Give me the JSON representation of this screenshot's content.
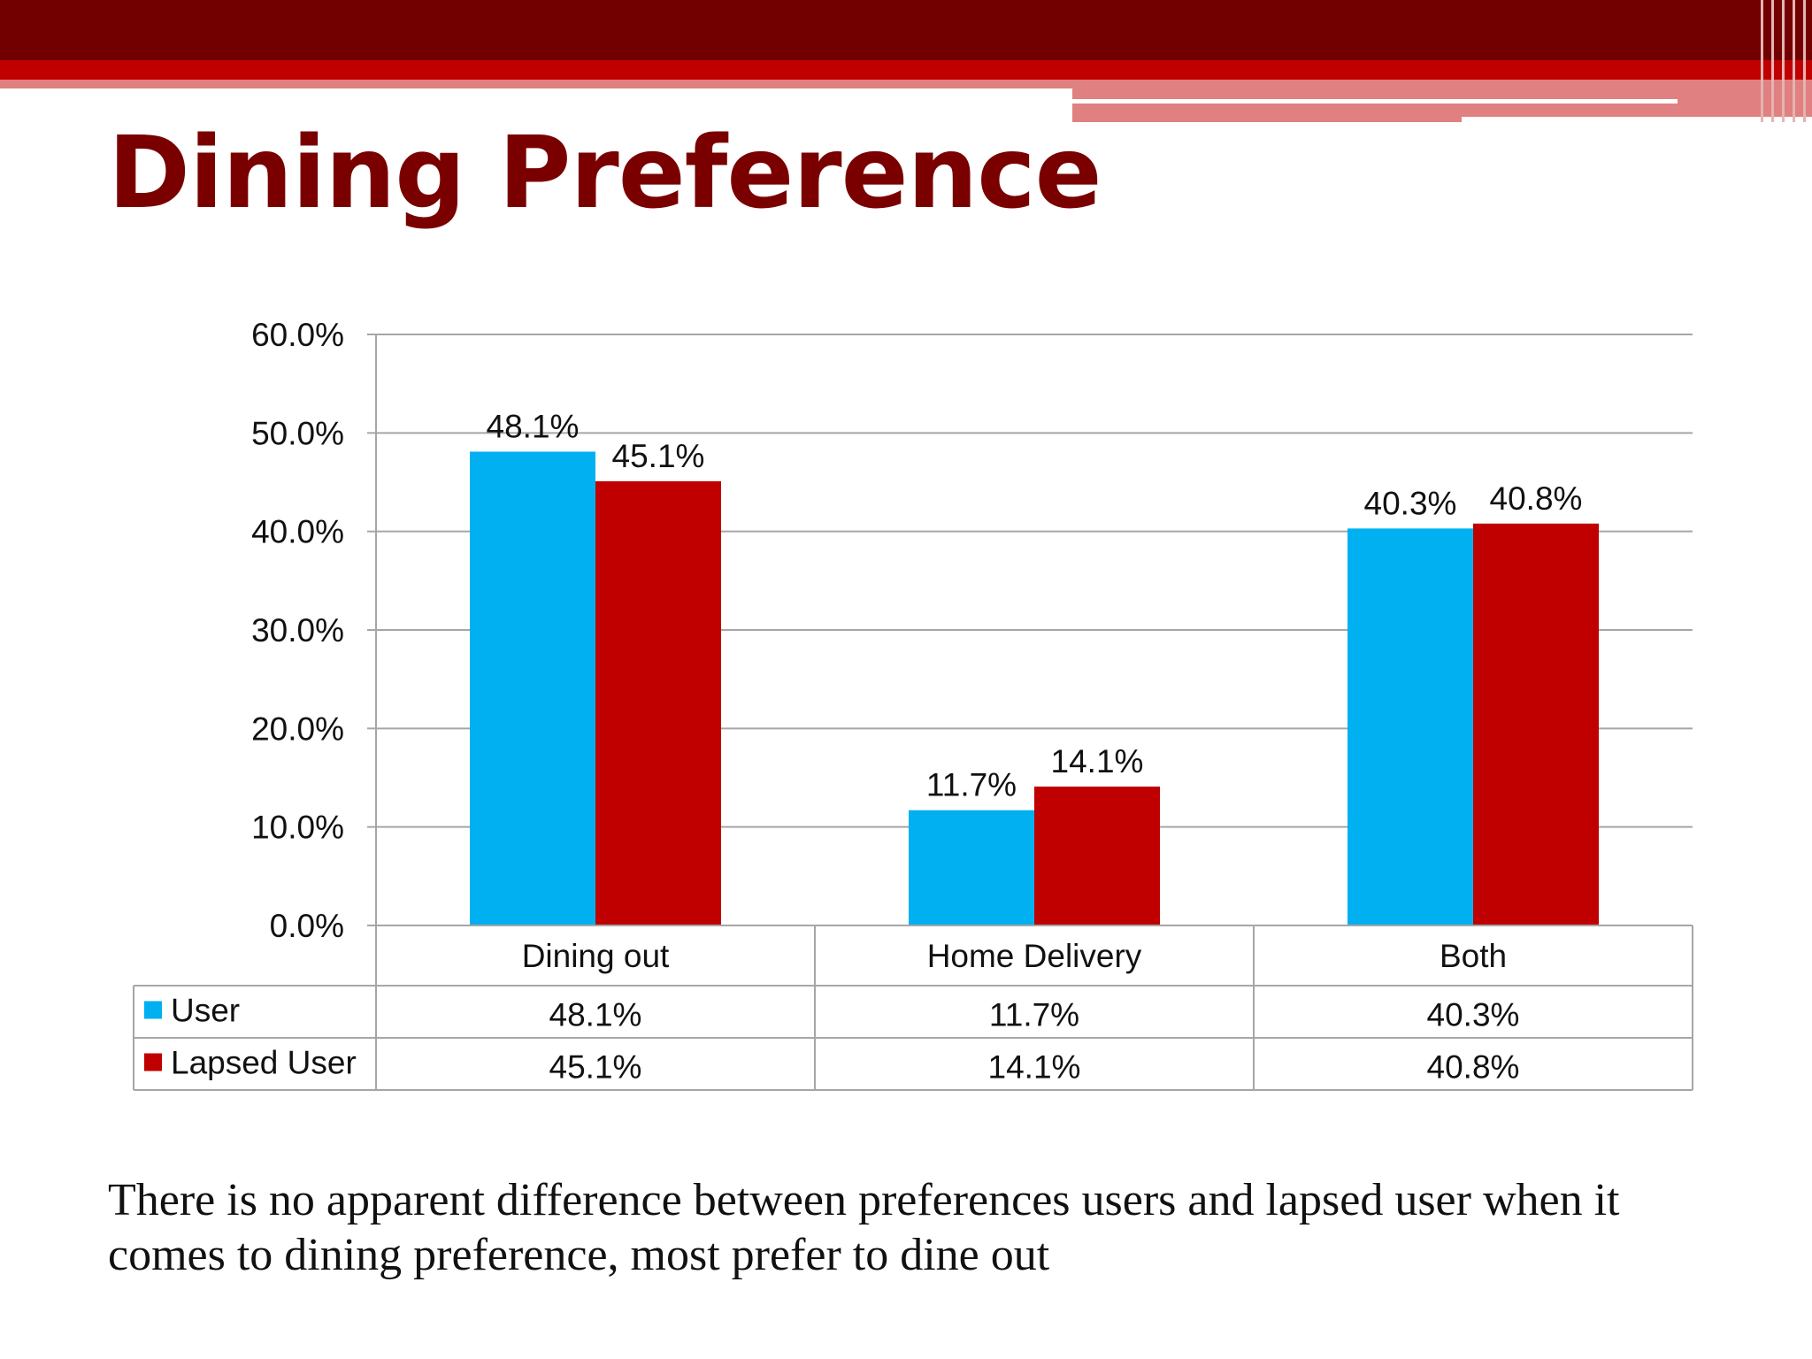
{
  "slide": {
    "title": "Dining Preference",
    "caption": "There is no apparent difference between preferences users and lapsed user when it comes to dining preference, most prefer to dine out"
  },
  "colors": {
    "header_dark": "#720000",
    "header_red": "#c00000",
    "header_pink": "#e08080",
    "title": "#7a0000",
    "series_user": "#00b0f0",
    "series_lapsed": "#c00000",
    "grid": "#a6a6a6"
  },
  "chart_data": {
    "type": "bar",
    "categories": [
      "Dining out",
      "Home Delivery",
      "Both"
    ],
    "series": [
      {
        "name": "User",
        "values": [
          48.1,
          11.7,
          40.3
        ],
        "labels": [
          "48.1%",
          "11.7%",
          "40.3%"
        ],
        "color": "#00b0f0"
      },
      {
        "name": "Lapsed User",
        "values": [
          45.1,
          14.1,
          40.8
        ],
        "labels": [
          "45.1%",
          "14.1%",
          "40.8%"
        ],
        "color": "#c00000"
      }
    ],
    "ylim": [
      0,
      60
    ],
    "yticks": [
      "0.0%",
      "10.0%",
      "20.0%",
      "30.0%",
      "40.0%",
      "50.0%",
      "60.0%"
    ],
    "grid": true,
    "legend": "data-table-below",
    "data_table": true
  }
}
